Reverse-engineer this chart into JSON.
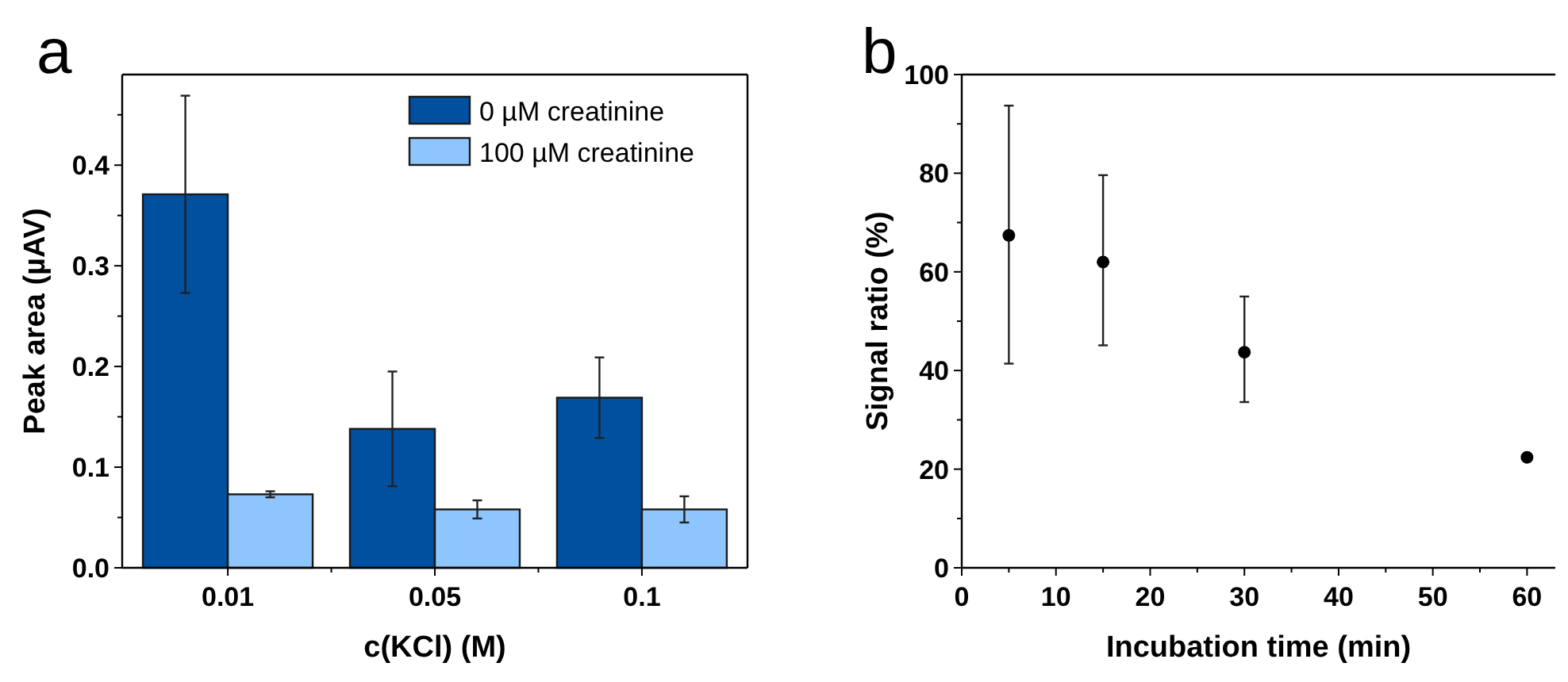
{
  "chart_data": [
    {
      "type": "bar",
      "title": "a",
      "xlabel": "c(KCl) (M)",
      "ylabel": "Peak area (µAV)",
      "categories": [
        "0.01",
        "0.05",
        "0.1"
      ],
      "series": [
        {
          "name": "0 µM creatinine",
          "color": "#0050a0",
          "values": [
            0.371,
            0.138,
            0.169
          ],
          "errors": [
            0.098,
            0.057,
            0.04
          ]
        },
        {
          "name": "100 µM creatinine",
          "color": "#8ec5fc",
          "values": [
            0.073,
            0.058,
            0.058
          ],
          "errors": [
            0.003,
            0.009,
            0.013
          ]
        }
      ],
      "ylim": [
        0,
        0.49
      ],
      "yticks": [
        {
          "value": 0,
          "label": "0.0"
        },
        {
          "value": 0.05,
          "label": null
        },
        0.1,
        {
          "value": 0.15,
          "label": null
        },
        0.2,
        {
          "value": 0.25,
          "label": null
        },
        0.3,
        {
          "value": 0.35,
          "label": null
        },
        0.4,
        {
          "value": 0.45,
          "label": null
        }
      ],
      "legend": "top right",
      "grid": false
    },
    {
      "type": "scatter",
      "title": "b",
      "xlabel": "Incubation time (min)",
      "ylabel": "Signal ratio (%)",
      "x": [
        5,
        15,
        30,
        60
      ],
      "series": [
        {
          "color": "#000000",
          "values": [
            67.4,
            62.0,
            43.7,
            22.4
          ],
          "errors": [
            [
              41.4,
              93.7
            ],
            [
              45.1,
              79.6
            ],
            [
              33.6,
              55.0
            ],
            null
          ]
        }
      ],
      "xlim": [
        0,
        63
      ],
      "xticks": [
        0,
        {
          "value": 5,
          "label": null
        },
        10,
        {
          "value": 15,
          "label": null
        },
        20,
        {
          "value": 25,
          "label": null
        },
        30,
        {
          "value": 35,
          "label": null
        },
        40,
        {
          "value": 45,
          "label": null
        },
        50,
        {
          "value": 55,
          "label": null
        },
        60
      ],
      "ylim": [
        0,
        100
      ],
      "yticks": [
        0,
        {
          "value": 10,
          "label": null
        },
        20,
        {
          "value": 30,
          "label": null
        },
        40,
        {
          "value": 50,
          "label": null
        },
        60,
        {
          "value": 70,
          "label": null
        },
        80,
        {
          "value": 90,
          "label": null
        },
        100
      ],
      "marker": "circle",
      "legend": false,
      "grid": false
    }
  ]
}
